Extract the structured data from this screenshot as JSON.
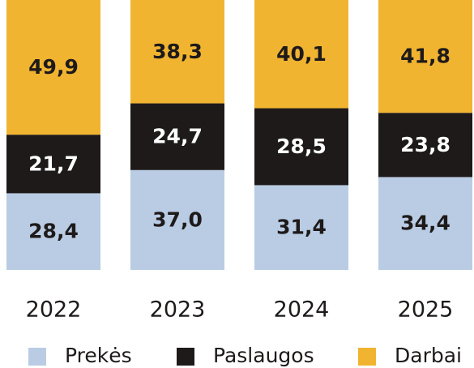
{
  "chart_data": {
    "type": "stacked_bar",
    "categories": [
      "2022",
      "2023",
      "2024",
      "2025"
    ],
    "ylim": [
      0,
      100
    ],
    "series": [
      {
        "name": "Prekės",
        "color": "#b9cce4",
        "values": [
          28.4,
          37.0,
          31.4,
          34.4
        ],
        "value_labels": [
          "28,4",
          "37,0",
          "31,4",
          "34,4"
        ]
      },
      {
        "name": "Paslaugos",
        "color": "#1e1a1a",
        "values": [
          21.7,
          24.7,
          28.5,
          23.8
        ],
        "value_labels": [
          "21,7",
          "24,7",
          "28,5",
          "23,8"
        ]
      },
      {
        "name": "Darbai",
        "color": "#f0b431",
        "values": [
          49.9,
          38.3,
          40.1,
          41.8
        ],
        "value_labels": [
          "49,9",
          "38,3",
          "40,1",
          "41,8"
        ]
      }
    ]
  }
}
